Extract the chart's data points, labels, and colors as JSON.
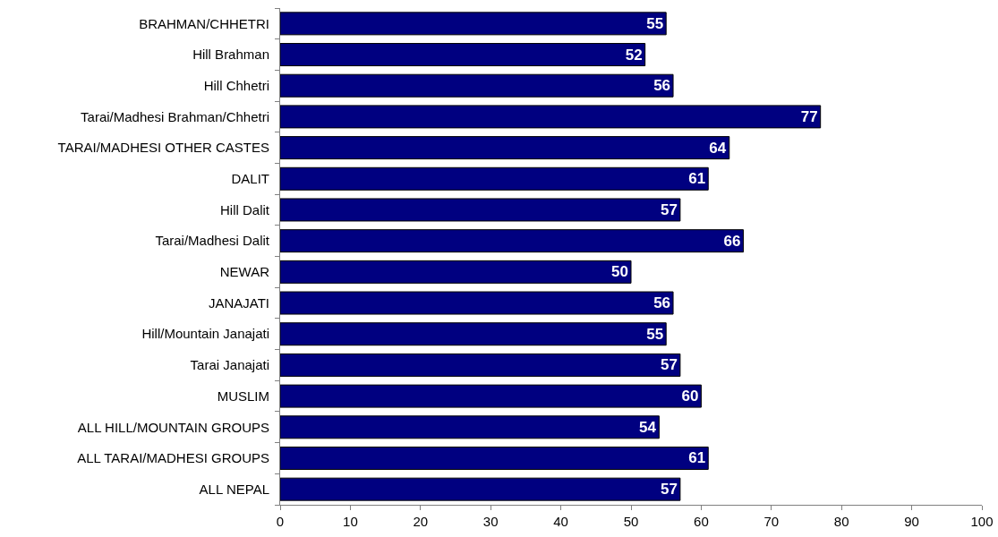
{
  "chart_data": {
    "type": "bar",
    "orientation": "horizontal",
    "categories": [
      "BRAHMAN/CHHETRI",
      "Hill Brahman",
      "Hill Chhetri",
      "Tarai/Madhesi Brahman/Chhetri",
      "TARAI/MADHESI OTHER CASTES",
      "DALIT",
      "Hill Dalit",
      "Tarai/Madhesi Dalit",
      "NEWAR",
      "JANAJATI",
      "Hill/Mountain Janajati",
      "Tarai Janajati",
      "MUSLIM",
      "ALL HILL/MOUNTAIN GROUPS",
      "ALL TARAI/MADHESI GROUPS",
      "ALL NEPAL"
    ],
    "values": [
      55,
      52,
      56,
      77,
      64,
      61,
      57,
      66,
      50,
      56,
      55,
      57,
      60,
      54,
      61,
      57
    ],
    "color": "#000080",
    "xlim": [
      0,
      100
    ],
    "xticks": [
      0,
      10,
      20,
      30,
      40,
      50,
      60,
      70,
      80,
      90,
      100
    ],
    "data_labels": true
  }
}
